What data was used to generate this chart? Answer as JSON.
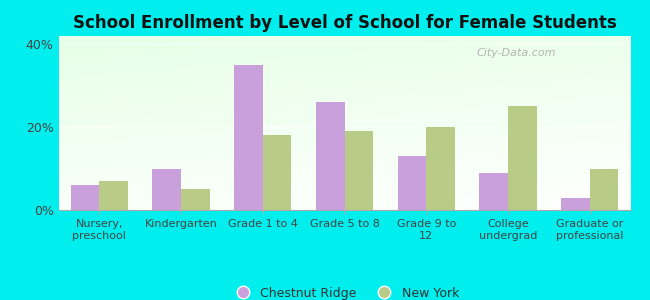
{
  "title": "School Enrollment by Level of School for Female Students",
  "categories": [
    "Nursery,\npreschool",
    "Kindergarten",
    "Grade 1 to 4",
    "Grade 5 to 8",
    "Grade 9 to\n12",
    "College\nundergrad",
    "Graduate or\nprofessional"
  ],
  "chestnut_ridge": [
    6,
    10,
    35,
    26,
    13,
    9,
    3
  ],
  "new_york": [
    7,
    5,
    18,
    19,
    20,
    25,
    10
  ],
  "chestnut_color": "#c9a0dc",
  "new_york_color": "#b8cc88",
  "ylim": [
    0,
    42
  ],
  "yticks": [
    0,
    20,
    40
  ],
  "ytick_labels": [
    "0%",
    "20%",
    "40%"
  ],
  "background_color": "#00eeee",
  "legend_chestnut": "Chestnut Ridge",
  "legend_ny": "New York",
  "bar_width": 0.35,
  "watermark": "City-Data.com"
}
